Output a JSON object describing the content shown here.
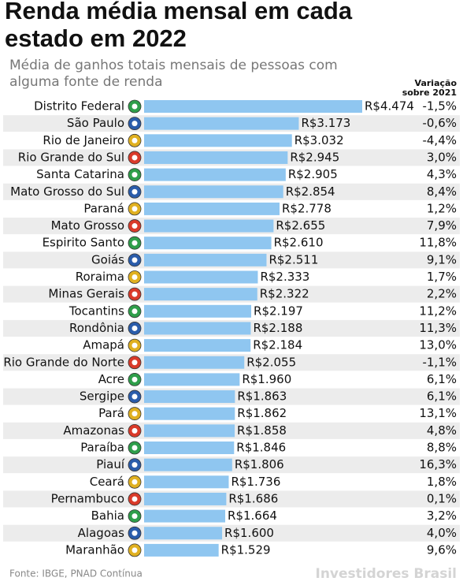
{
  "chart_data": {
    "type": "bar",
    "orientation": "horizontal",
    "title": [
      "Renda média mensal em cada",
      "estado em 2022"
    ],
    "subtitle": [
      "Média de ganhos totais mensais de pessoas com",
      "alguma fonte de renda"
    ],
    "categories": [
      "Distrito Federal",
      "São Paulo",
      "Rio de Janeiro",
      "Rio Grande do Sul",
      "Santa Catarina",
      "Mato Grosso do Sul",
      "Paraná",
      "Mato Grosso",
      "Espirito Santo",
      "Goiás",
      "Roraima",
      "Minas Gerais",
      "Tocantins",
      "Rondônia",
      "Amapá",
      "Rio Grande do Norte",
      "Acre",
      "Sergipe",
      "Pará",
      "Amazonas",
      "Paraíba",
      "Piauí",
      "Ceará",
      "Pernambuco",
      "Bahia",
      "Alagoas",
      "Maranhão"
    ],
    "values": [
      4474,
      3173,
      3032,
      2945,
      2905,
      2854,
      2778,
      2655,
      2610,
      2511,
      2333,
      2322,
      2197,
      2188,
      2184,
      2055,
      1960,
      1863,
      1862,
      1858,
      1846,
      1806,
      1736,
      1686,
      1664,
      1600,
      1529
    ],
    "value_labels": [
      "R$4.474",
      "R$3.173",
      "R$3.032",
      "R$2.945",
      "R$2.905",
      "R$2.854",
      "R$2.778",
      "R$2.655",
      "R$2.610",
      "R$2.511",
      "R$2.333",
      "R$2.322",
      "R$2.197",
      "R$2.188",
      "R$2.184",
      "R$2.055",
      "R$1.960",
      "R$1.863",
      "R$1.862",
      "R$1.858",
      "R$1.846",
      "R$1.806",
      "R$1.736",
      "R$1.686",
      "R$1.664",
      "R$1.600",
      "R$1.529"
    ],
    "color": "#8fc6f0",
    "variation": {
      "title": [
        "Variação",
        "sobre 2021"
      ],
      "values": [
        -1.5,
        -0.6,
        -4.4,
        3.0,
        4.3,
        8.4,
        1.2,
        7.9,
        11.8,
        9.1,
        1.7,
        2.2,
        11.2,
        11.3,
        13.0,
        -1.1,
        6.1,
        6.1,
        13.1,
        4.8,
        8.8,
        16.3,
        1.8,
        0.1,
        3.2,
        4.0,
        9.6
      ],
      "value_labels": [
        "-1,5%",
        "-0,6%",
        "-4,4%",
        "3,0%",
        "4,3%",
        "8,4%",
        "1,2%",
        "7,9%",
        "11,8%",
        "9,1%",
        "1,7%",
        "2,2%",
        "11,2%",
        "11,3%",
        "13,0%",
        "-1,1%",
        "6,1%",
        "6,1%",
        "13,1%",
        "4,8%",
        "8,8%",
        "16,3%",
        "1,8%",
        "0,1%",
        "3,2%",
        "4,0%",
        "9,6%"
      ]
    },
    "source": "Fonte: IBGE, PNAD Contínua",
    "brand": "Investidores Brasil"
  }
}
